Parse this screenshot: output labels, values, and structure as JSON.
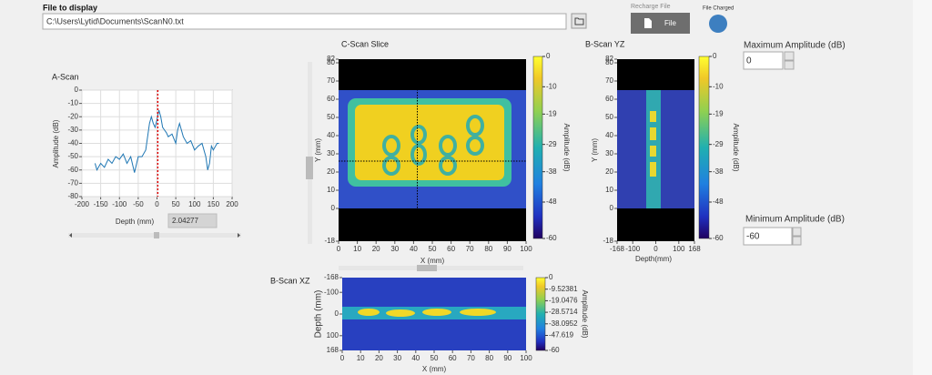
{
  "file_panel": {
    "label": "File to display",
    "path": "C:\\Users\\Lytid\\Documents\\ScanN0.txt",
    "recharge_label": "Recharge File",
    "file_button": "File",
    "charged_label": "File Charged"
  },
  "a_scan": {
    "type": "line",
    "title": "A-Scan",
    "x_label": "Depth (mm)",
    "y_label": "Amplitude (dB)",
    "xlim": [
      -200,
      200
    ],
    "xticks": [
      -200,
      -150,
      -100,
      -50,
      0,
      50,
      100,
      150,
      200
    ],
    "ylim": [
      -80,
      0
    ],
    "yticks": [
      0,
      -10,
      -20,
      -30,
      -40,
      -50,
      -60,
      -70,
      -80
    ],
    "grid": true,
    "color": "#1f77b4",
    "x": [
      -165,
      -160,
      -150,
      -140,
      -130,
      -120,
      -110,
      -100,
      -90,
      -80,
      -70,
      -60,
      -50,
      -40,
      -30,
      -20,
      -15,
      -10,
      -5,
      0,
      5,
      10,
      15,
      20,
      25,
      30,
      40,
      50,
      55,
      60,
      65,
      70,
      80,
      90,
      100,
      110,
      120,
      130,
      135,
      140,
      145,
      150,
      160,
      165
    ],
    "values": [
      -55,
      -60,
      -55,
      -58,
      -52,
      -55,
      -50,
      -52,
      -48,
      -55,
      -50,
      -62,
      -50,
      -50,
      -45,
      -25,
      -20,
      -25,
      -28,
      -22,
      -15,
      -20,
      -28,
      -30,
      -32,
      -35,
      -33,
      -40,
      -30,
      -25,
      -30,
      -35,
      -40,
      -38,
      -45,
      -42,
      -40,
      -50,
      -60,
      -55,
      -42,
      -45,
      -40,
      -40
    ],
    "cursor": 2.04277,
    "cursor_color": "#e00000"
  },
  "c_scan": {
    "type": "heatmap",
    "title": "C-Scan Slice",
    "x_label": "X (mm)",
    "y_label": "Y (mm)",
    "xlim": [
      0,
      100
    ],
    "xticks": [
      0,
      10,
      20,
      30,
      40,
      50,
      60,
      70,
      80,
      90,
      100
    ],
    "ylim": [
      -18,
      82
    ],
    "yticks": [
      -18,
      0,
      10,
      20,
      30,
      40,
      50,
      60,
      70,
      80,
      82
    ],
    "cursor_x": 42,
    "cursor_y": 26,
    "colorbar": {
      "label": "Amplitude (dB)",
      "lim": [
        -60,
        0
      ],
      "ticks": [
        0,
        -10,
        -19,
        -29,
        -38,
        -48,
        -60
      ]
    }
  },
  "b_scan_yz": {
    "type": "heatmap",
    "title": "B-Scan YZ",
    "x_label": "Depth(mm)",
    "y_label": "Y (mm)",
    "xlim": [
      -168,
      168
    ],
    "xticks": [
      -168,
      -100,
      0,
      100,
      168
    ],
    "ylim": [
      -18,
      82
    ],
    "yticks": [
      -18,
      0,
      10,
      20,
      30,
      40,
      50,
      60,
      70,
      80,
      82
    ],
    "colorbar": {
      "label": "Amplitude (dB)",
      "lim": [
        -60,
        0
      ],
      "ticks": [
        0,
        -10,
        -19,
        -29,
        -38,
        -48,
        -60
      ]
    }
  },
  "b_scan_xz": {
    "type": "heatmap",
    "title": "B-Scan XZ",
    "x_label": "X (mm)",
    "y_label": "Depth (mm)",
    "xlim": [
      0,
      100
    ],
    "xticks": [
      0,
      10,
      20,
      30,
      40,
      50,
      60,
      70,
      80,
      90,
      100
    ],
    "ylim": [
      168,
      -168
    ],
    "yticks": [
      -168,
      -100,
      0,
      100,
      168
    ],
    "colorbar": {
      "label": "Amplitude (dB)",
      "lim": [
        -60,
        0
      ],
      "ticks": [
        0,
        -9.52381,
        -19.0476,
        -28.5714,
        -38.0952,
        -47.619,
        -60
      ]
    }
  },
  "amplitude_panel": {
    "max_label": "Maximum Amplitude (dB)",
    "max_value": "0",
    "min_label": "Minimum Amplitude (dB)",
    "min_value": "-60"
  }
}
